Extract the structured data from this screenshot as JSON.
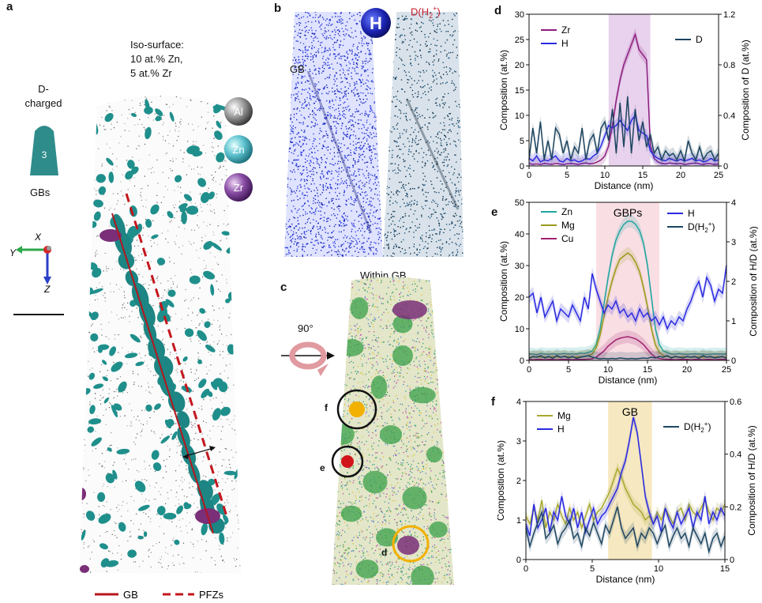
{
  "panel_a": {
    "label": "a",
    "iso_title": "Iso-surface:",
    "iso_zn": "10 at.% Zn,",
    "iso_zr": "5 at.% Zr",
    "charge_top": "D-",
    "charge_bottom": "charged",
    "sample_number": "3",
    "gbs_label": "GBs",
    "axis_x": "X",
    "axis_y": "Y",
    "axis_z": "Z",
    "atoms": [
      "Al",
      "Zn",
      "Zr"
    ],
    "legend_gb": "GB",
    "legend_pfz": "PFZs",
    "colors": {
      "precipitate": "#1f8f8c",
      "zr_cluster": "#7a2f78",
      "gb_line": "#b5161d"
    }
  },
  "panel_b": {
    "label": "b",
    "h_badge": "H",
    "gb_label": "GB",
    "d_label": "D(H",
    "d_sub": "2",
    "d_sup": "+",
    "d_close": ")",
    "colors": {
      "h": "#1f2fd6",
      "d": "#123c5e",
      "d_label": "#c21a2a"
    }
  },
  "panel_c": {
    "label": "c",
    "title": "Within GB",
    "rotation": "90°",
    "markers": [
      "f",
      "e",
      "d"
    ],
    "colors": {
      "f": "#f2b000",
      "e": "#d1141a",
      "d_ring": "#f2b000"
    }
  },
  "chart_data": [
    {
      "panel": "d",
      "type": "line",
      "xlabel": "Distance (nm)",
      "ylabel": "Composition (at.%)",
      "ylabel_right": "Composition of D (at.%)",
      "xlim": [
        0,
        25
      ],
      "ylim": [
        0,
        30
      ],
      "ylim_right": [
        0,
        1.2
      ],
      "xticks": [
        0,
        5,
        10,
        15,
        20,
        25
      ],
      "yticks": [
        0,
        5,
        10,
        15,
        20,
        25,
        30
      ],
      "yticks_right": [
        "0",
        "0.4",
        "0.8",
        "1.2"
      ],
      "highlight": [
        10.5,
        16
      ],
      "highlight_color": "#e9d2ee",
      "x": [
        0,
        0.5,
        1,
        1.5,
        2,
        2.5,
        3,
        3.5,
        4,
        4.5,
        5,
        5.5,
        6,
        6.5,
        7,
        7.5,
        8,
        8.5,
        9,
        9.5,
        10,
        10.5,
        11,
        11.5,
        12,
        12.5,
        13,
        13.5,
        14,
        14.5,
        15,
        15.5,
        16,
        16.5,
        17,
        17.5,
        18,
        18.5,
        19,
        19.5,
        20,
        20.5,
        21,
        21.5,
        22,
        22.5,
        23,
        23.5,
        24,
        24.5,
        25
      ],
      "series": [
        {
          "name": "Zr",
          "axis": "left",
          "color": "#8b1e7e",
          "values": [
            0.5,
            0.3,
            0.4,
            0.3,
            0.5,
            0.4,
            0.3,
            0.5,
            0.4,
            0.3,
            0.4,
            0.5,
            0.4,
            0.3,
            0.5,
            0.6,
            0.4,
            0.5,
            0.8,
            1.2,
            2,
            4,
            8,
            13,
            17,
            20,
            22,
            24,
            26,
            23,
            22,
            21,
            4,
            1.5,
            0.8,
            0.5,
            0.4,
            0.6,
            0.5,
            0.4,
            0.5,
            0.3,
            0.4,
            0.5,
            0.6,
            0.4,
            0.3,
            0.5,
            0.4,
            0.3,
            0.4
          ]
        },
        {
          "name": "H",
          "axis": "left",
          "color": "#2a2ae0",
          "values": [
            1.5,
            1,
            2,
            0.8,
            1.2,
            1,
            1.5,
            2,
            1,
            0.8,
            1.5,
            1,
            1.2,
            0.8,
            1,
            1.5,
            1.3,
            2,
            2.5,
            4,
            6,
            8,
            7.5,
            8,
            9,
            8,
            7,
            9,
            10,
            7,
            6.5,
            6,
            3,
            2,
            1.5,
            1.2,
            1,
            1.5,
            1.2,
            1,
            1.3,
            1,
            1.2,
            1.5,
            1,
            1.2,
            0.8,
            1,
            1.5,
            1,
            1.2
          ]
        },
        {
          "name": "D",
          "axis": "right",
          "color": "#1d4560",
          "values": [
            0.05,
            0.3,
            0.1,
            0.35,
            0.05,
            0.2,
            0.05,
            0.3,
            0.25,
            0.1,
            0.2,
            0.05,
            0.15,
            0.1,
            0.3,
            0.05,
            0.2,
            0.25,
            0.1,
            0.3,
            0.35,
            0.2,
            0.45,
            0.1,
            0.5,
            0.15,
            0.55,
            0.1,
            0.45,
            0.2,
            0.35,
            0.15,
            0.25,
            0.1,
            0.15,
            0.05,
            0.12,
            0.08,
            0.1,
            0.05,
            0.12,
            0.04,
            0.2,
            0.1,
            0.05,
            0.15,
            0.05,
            0.1,
            0.12,
            0.05,
            0.1
          ]
        }
      ]
    },
    {
      "panel": "e",
      "type": "line",
      "xlabel": "Distance (nm)",
      "ylabel": "Composition (at.%)",
      "ylabel_right": "Composition of H/D (at.%)",
      "xlim": [
        0,
        25
      ],
      "ylim": [
        0,
        50
      ],
      "ylim_right": [
        0,
        4
      ],
      "xticks": [
        0,
        5,
        10,
        15,
        20,
        25
      ],
      "yticks": [
        0,
        10,
        20,
        30,
        40,
        50
      ],
      "yticks_right": [
        "0",
        "1",
        "2",
        "3",
        "4"
      ],
      "highlight": [
        8.5,
        16.5
      ],
      "highlight_color": "#f9dfe4",
      "highlight_label": "GBPs",
      "x": [
        0,
        0.5,
        1,
        1.5,
        2,
        2.5,
        3,
        3.5,
        4,
        4.5,
        5,
        5.5,
        6,
        6.5,
        7,
        7.5,
        8,
        8.5,
        9,
        9.5,
        10,
        10.5,
        11,
        11.5,
        12,
        12.5,
        13,
        13.5,
        14,
        14.5,
        15,
        15.5,
        16,
        16.5,
        17,
        17.5,
        18,
        18.5,
        19,
        19.5,
        20,
        20.5,
        21,
        21.5,
        22,
        22.5,
        23,
        23.5,
        24,
        24.5,
        25
      ],
      "series": [
        {
          "name": "Zn",
          "axis": "left",
          "color": "#20a5a0",
          "values": [
            2,
            2,
            1.8,
            2.2,
            2,
            1.9,
            2.1,
            2,
            2,
            2.2,
            2,
            2.1,
            2,
            2.3,
            2.2,
            2.5,
            3,
            5,
            10,
            18,
            26,
            33,
            38,
            41,
            43,
            44,
            44,
            43,
            41,
            37,
            30,
            20,
            10,
            5,
            3,
            2.5,
            2,
            2,
            2.2,
            2,
            1.9,
            2,
            2.1,
            2,
            2,
            1.8,
            2,
            2.1,
            2,
            2,
            2
          ]
        },
        {
          "name": "Mg",
          "axis": "left",
          "color": "#9a9a1a",
          "values": [
            1,
            1,
            1.2,
            1,
            1.1,
            1,
            1.2,
            1.1,
            1,
            1.3,
            1.2,
            1,
            1.1,
            1.2,
            1.2,
            1.5,
            2,
            4,
            8,
            14,
            20,
            25,
            29,
            32,
            33,
            34,
            33,
            31,
            28,
            23,
            17,
            10,
            5,
            2.5,
            1.5,
            1.2,
            1,
            1.1,
            1,
            1.2,
            1.1,
            1,
            1,
            1.2,
            1,
            1.1,
            1,
            1,
            1.2,
            1,
            1
          ]
        },
        {
          "name": "Cu",
          "axis": "left",
          "color": "#a0206e",
          "values": [
            0.3,
            0.2,
            0.3,
            0.3,
            0.2,
            0.3,
            0.3,
            0.2,
            0.3,
            0.3,
            0.3,
            0.2,
            0.3,
            0.3,
            0.3,
            0.4,
            0.5,
            1,
            2,
            3,
            4.5,
            5.5,
            6.5,
            7,
            7.3,
            7.5,
            7.2,
            6.8,
            6,
            5,
            3.5,
            2,
            1,
            0.6,
            0.4,
            0.3,
            0.3,
            0.2,
            0.3,
            0.3,
            0.3,
            0.2,
            0.3,
            0.3,
            0.2,
            0.3,
            0.3,
            0.2,
            0.3,
            0.3,
            0.3
          ]
        },
        {
          "name": "H",
          "axis": "right",
          "color": "#2a2ae0",
          "values": [
            1.6,
            1.7,
            1.2,
            1.6,
            1.1,
            1.3,
            1.5,
            1,
            1.3,
            1.2,
            1.1,
            1.4,
            1.2,
            1.0,
            1.6,
            1.3,
            2.2,
            1.8,
            1.5,
            1.2,
            1.4,
            1.3,
            1.5,
            1.2,
            1.3,
            1.1,
            1.2,
            1.0,
            1.3,
            1.1,
            1.2,
            1.0,
            1.1,
            0.9,
            1.1,
            0.8,
            1.0,
            0.9,
            1.1,
            1.0,
            1.3,
            1.5,
            1.8,
            2.0,
            1.6,
            2.1,
            1.9,
            1.5,
            1.8,
            1.7,
            2.4
          ]
        },
        {
          "name": "D(H2+)",
          "axis": "right",
          "color": "#1d4560",
          "values": [
            0.05,
            0.1,
            0.08,
            0.12,
            0.06,
            0.1,
            0.05,
            0.12,
            0.08,
            0.1,
            0.06,
            0.1,
            0.05,
            0.08,
            0.1,
            0.12,
            0.08,
            0.06,
            0.04,
            0.05,
            0.04,
            0.05,
            0.04,
            0.06,
            0.05,
            0.04,
            0.05,
            0.04,
            0.05,
            0.06,
            0.05,
            0.08,
            0.06,
            0.1,
            0.08,
            0.12,
            0.06,
            0.1,
            0.08,
            0.06,
            0.1,
            0.08,
            0.1,
            0.05,
            0.12,
            0.08,
            0.1,
            0.06,
            0.08,
            0.1,
            0.05
          ]
        }
      ]
    },
    {
      "panel": "f",
      "type": "line",
      "xlabel": "Distance (nm)",
      "ylabel": "Composition (at.%)",
      "ylabel_right": "Composition of H/D (at.%)",
      "xlim": [
        0,
        15
      ],
      "ylim": [
        0,
        4
      ],
      "ylim_right": [
        0,
        0.6
      ],
      "xticks": [
        0,
        5,
        10,
        15
      ],
      "yticks": [
        0,
        1,
        2,
        3,
        4
      ],
      "yticks_right": [
        "0",
        "0.2",
        "0.4",
        "0.6"
      ],
      "highlight": [
        6.2,
        9.5
      ],
      "highlight_color": "#f6e8c0",
      "highlight_label": "GB",
      "x": [
        0,
        0.3,
        0.6,
        0.9,
        1.2,
        1.5,
        1.8,
        2.1,
        2.4,
        2.7,
        3,
        3.3,
        3.6,
        3.9,
        4.2,
        4.5,
        4.8,
        5.1,
        5.4,
        5.7,
        6,
        6.3,
        6.6,
        6.9,
        7.2,
        7.5,
        7.8,
        8.1,
        8.4,
        8.7,
        9,
        9.3,
        9.6,
        9.9,
        10.2,
        10.5,
        10.8,
        11.1,
        11.4,
        11.7,
        12,
        12.3,
        12.6,
        12.9,
        13.2,
        13.5,
        13.8,
        14.1,
        14.4,
        14.7,
        15
      ],
      "series": [
        {
          "name": "Mg",
          "axis": "left",
          "color": "#a8a830",
          "values": [
            1.1,
            0.9,
            1.3,
            1.0,
            1.5,
            0.8,
            1.2,
            1.0,
            1.4,
            1.1,
            0.9,
            1.3,
            1.0,
            1.2,
            0.8,
            1.1,
            1.4,
            1.0,
            1.2,
            1.3,
            1.5,
            1.7,
            2.0,
            2.3,
            2.1,
            1.8,
            1.6,
            1.4,
            1.3,
            1.2,
            1.0,
            1.1,
            0.9,
            1.2,
            1.0,
            1.3,
            1.1,
            0.9,
            1.2,
            1.3,
            1.0,
            1.4,
            1.2,
            1.1,
            1.3,
            1.5,
            1.2,
            1.0,
            1.3,
            1.2,
            1.4
          ]
        },
        {
          "name": "H",
          "axis": "left",
          "color": "#2a2ae0",
          "values": [
            0.9,
            0.6,
            1.4,
            0.8,
            1.0,
            1.3,
            0.7,
            1.2,
            1.0,
            1.6,
            1.1,
            0.9,
            1.3,
            0.8,
            1.2,
            0.7,
            1.0,
            1.3,
            0.9,
            1.1,
            1.2,
            1.4,
            1.6,
            1.8,
            2.2,
            2.5,
            3.0,
            3.6,
            3.2,
            2.4,
            1.6,
            1.2,
            0.9,
            1.1,
            0.7,
            1.3,
            1.0,
            0.8,
            1.2,
            0.9,
            1.1,
            1.3,
            0.8,
            1.2,
            1.0,
            1.6,
            0.9,
            1.2,
            1.0,
            1.3,
            1.1
          ]
        },
        {
          "name": "D(H2+)",
          "axis": "right",
          "color": "#1d4560",
          "values": [
            0.12,
            0.05,
            0.1,
            0.14,
            0.18,
            0.08,
            0.1,
            0.13,
            0.06,
            0.1,
            0.12,
            0.15,
            0.08,
            0.1,
            0.05,
            0.12,
            0.09,
            0.14,
            0.1,
            0.06,
            0.13,
            0.1,
            0.15,
            0.2,
            0.12,
            0.08,
            0.1,
            0.12,
            0.05,
            0.1,
            0.08,
            0.12,
            0.1,
            0.06,
            0.1,
            0.13,
            0.05,
            0.09,
            0.12,
            0.08,
            0.1,
            0.05,
            0.12,
            0.09,
            0.06,
            0.1,
            0.03,
            0.08,
            0.1,
            0.05,
            0.09
          ]
        }
      ]
    }
  ]
}
